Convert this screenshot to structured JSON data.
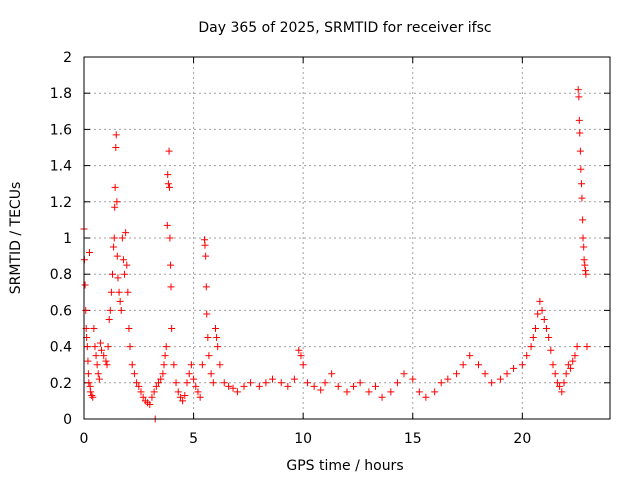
{
  "chart_data": {
    "type": "scatter",
    "title": "Day 365 of 2025, SRMTID for receiver ifsc",
    "xlabel": "GPS time / hours",
    "ylabel": "SRMTID / TECUs",
    "xlim": [
      0,
      24
    ],
    "ylim": [
      0,
      2
    ],
    "xticks": [
      0,
      5,
      10,
      15,
      20
    ],
    "yticks": [
      0,
      0.2,
      0.4,
      0.6,
      0.8,
      1,
      1.2,
      1.4,
      1.6,
      1.8,
      2
    ],
    "xtick_labels": [
      "0",
      "5",
      "10",
      "15",
      "20"
    ],
    "ytick_labels": [
      "0",
      "0.2",
      "0.4",
      "0.6",
      "0.8",
      "1",
      "1.2",
      "1.4",
      "1.6",
      "1.8",
      "2"
    ],
    "grid": true,
    "marker": "+",
    "color": "#ff0000",
    "series": [
      {
        "name": "SRMTID",
        "points": [
          [
            0.0,
            1.05
          ],
          [
            0.02,
            0.88
          ],
          [
            0.05,
            0.74
          ],
          [
            0.08,
            0.6
          ],
          [
            0.1,
            0.5
          ],
          [
            0.12,
            0.45
          ],
          [
            0.15,
            0.4
          ],
          [
            0.18,
            0.32
          ],
          [
            0.2,
            0.25
          ],
          [
            0.22,
            0.2
          ],
          [
            0.25,
            0.92
          ],
          [
            0.28,
            0.18
          ],
          [
            0.3,
            0.15
          ],
          [
            0.35,
            0.13
          ],
          [
            0.4,
            0.12
          ],
          [
            0.45,
            0.5
          ],
          [
            0.5,
            0.4
          ],
          [
            0.55,
            0.35
          ],
          [
            0.6,
            0.3
          ],
          [
            0.65,
            0.25
          ],
          [
            0.7,
            0.22
          ],
          [
            0.75,
            0.42
          ],
          [
            0.8,
            0.38
          ],
          [
            0.9,
            0.35
          ],
          [
            1.0,
            0.32
          ],
          [
            1.05,
            0.3
          ],
          [
            1.1,
            0.4
          ],
          [
            1.15,
            0.55
          ],
          [
            1.2,
            0.6
          ],
          [
            1.25,
            0.7
          ],
          [
            1.3,
            0.8
          ],
          [
            1.35,
            0.95
          ],
          [
            1.38,
            1.0
          ],
          [
            1.4,
            1.17
          ],
          [
            1.42,
            1.28
          ],
          [
            1.45,
            1.5
          ],
          [
            1.47,
            1.57
          ],
          [
            1.5,
            1.2
          ],
          [
            1.52,
            0.9
          ],
          [
            1.55,
            0.78
          ],
          [
            1.6,
            0.7
          ],
          [
            1.65,
            0.65
          ],
          [
            1.7,
            0.6
          ],
          [
            1.75,
            1.0
          ],
          [
            1.8,
            0.88
          ],
          [
            1.85,
            0.8
          ],
          [
            1.9,
            1.03
          ],
          [
            1.95,
            0.85
          ],
          [
            2.0,
            0.7
          ],
          [
            2.05,
            0.5
          ],
          [
            2.1,
            0.4
          ],
          [
            2.2,
            0.3
          ],
          [
            2.3,
            0.25
          ],
          [
            2.4,
            0.2
          ],
          [
            2.5,
            0.18
          ],
          [
            2.6,
            0.15
          ],
          [
            2.7,
            0.12
          ],
          [
            2.8,
            0.1
          ],
          [
            2.9,
            0.09
          ],
          [
            3.0,
            0.08
          ],
          [
            3.1,
            0.12
          ],
          [
            3.2,
            0.15
          ],
          [
            3.25,
            0.0
          ],
          [
            3.3,
            0.18
          ],
          [
            3.4,
            0.2
          ],
          [
            3.5,
            0.22
          ],
          [
            3.6,
            0.25
          ],
          [
            3.65,
            0.3
          ],
          [
            3.7,
            0.35
          ],
          [
            3.75,
            0.4
          ],
          [
            3.8,
            1.07
          ],
          [
            3.82,
            1.35
          ],
          [
            3.85,
            1.3
          ],
          [
            3.88,
            1.48
          ],
          [
            3.9,
            1.28
          ],
          [
            3.92,
            1.0
          ],
          [
            3.95,
            0.85
          ],
          [
            3.97,
            0.73
          ],
          [
            4.0,
            0.5
          ],
          [
            4.1,
            0.3
          ],
          [
            4.2,
            0.2
          ],
          [
            4.3,
            0.15
          ],
          [
            4.4,
            0.12
          ],
          [
            4.5,
            0.1
          ],
          [
            4.6,
            0.13
          ],
          [
            4.7,
            0.2
          ],
          [
            4.8,
            0.25
          ],
          [
            4.9,
            0.3
          ],
          [
            5.0,
            0.22
          ],
          [
            5.1,
            0.18
          ],
          [
            5.2,
            0.15
          ],
          [
            5.3,
            0.12
          ],
          [
            5.4,
            0.3
          ],
          [
            5.5,
            0.99
          ],
          [
            5.52,
            0.96
          ],
          [
            5.55,
            0.9
          ],
          [
            5.58,
            0.73
          ],
          [
            5.6,
            0.58
          ],
          [
            5.65,
            0.45
          ],
          [
            5.7,
            0.35
          ],
          [
            5.8,
            0.25
          ],
          [
            5.9,
            0.2
          ],
          [
            6.0,
            0.5
          ],
          [
            6.05,
            0.45
          ],
          [
            6.1,
            0.4
          ],
          [
            6.2,
            0.3
          ],
          [
            6.4,
            0.2
          ],
          [
            6.6,
            0.18
          ],
          [
            6.8,
            0.17
          ],
          [
            7.0,
            0.15
          ],
          [
            7.3,
            0.18
          ],
          [
            7.6,
            0.2
          ],
          [
            8.0,
            0.18
          ],
          [
            8.3,
            0.2
          ],
          [
            8.6,
            0.22
          ],
          [
            9.0,
            0.2
          ],
          [
            9.3,
            0.18
          ],
          [
            9.6,
            0.22
          ],
          [
            9.8,
            0.38
          ],
          [
            9.9,
            0.35
          ],
          [
            10.0,
            0.3
          ],
          [
            10.2,
            0.2
          ],
          [
            10.5,
            0.18
          ],
          [
            10.8,
            0.16
          ],
          [
            11.0,
            0.2
          ],
          [
            11.3,
            0.25
          ],
          [
            11.6,
            0.18
          ],
          [
            12.0,
            0.15
          ],
          [
            12.3,
            0.18
          ],
          [
            12.6,
            0.2
          ],
          [
            13.0,
            0.15
          ],
          [
            13.3,
            0.18
          ],
          [
            13.6,
            0.12
          ],
          [
            14.0,
            0.15
          ],
          [
            14.3,
            0.2
          ],
          [
            14.6,
            0.25
          ],
          [
            15.0,
            0.22
          ],
          [
            15.3,
            0.15
          ],
          [
            15.6,
            0.12
          ],
          [
            16.0,
            0.15
          ],
          [
            16.3,
            0.2
          ],
          [
            16.6,
            0.22
          ],
          [
            17.0,
            0.25
          ],
          [
            17.3,
            0.3
          ],
          [
            17.6,
            0.35
          ],
          [
            18.0,
            0.3
          ],
          [
            18.3,
            0.25
          ],
          [
            18.6,
            0.2
          ],
          [
            19.0,
            0.22
          ],
          [
            19.3,
            0.25
          ],
          [
            19.6,
            0.28
          ],
          [
            20.0,
            0.3
          ],
          [
            20.2,
            0.35
          ],
          [
            20.4,
            0.4
          ],
          [
            20.5,
            0.45
          ],
          [
            20.6,
            0.5
          ],
          [
            20.7,
            0.58
          ],
          [
            20.8,
            0.65
          ],
          [
            20.9,
            0.6
          ],
          [
            21.0,
            0.55
          ],
          [
            21.1,
            0.5
          ],
          [
            21.2,
            0.45
          ],
          [
            21.3,
            0.38
          ],
          [
            21.4,
            0.3
          ],
          [
            21.5,
            0.25
          ],
          [
            21.6,
            0.2
          ],
          [
            21.7,
            0.18
          ],
          [
            21.8,
            0.15
          ],
          [
            21.9,
            0.2
          ],
          [
            22.0,
            0.25
          ],
          [
            22.1,
            0.3
          ],
          [
            22.2,
            0.28
          ],
          [
            22.3,
            0.32
          ],
          [
            22.4,
            0.35
          ],
          [
            22.5,
            0.4
          ],
          [
            22.55,
            1.82
          ],
          [
            22.58,
            1.78
          ],
          [
            22.6,
            1.65
          ],
          [
            22.62,
            1.58
          ],
          [
            22.65,
            1.48
          ],
          [
            22.67,
            1.38
          ],
          [
            22.7,
            1.3
          ],
          [
            22.72,
            1.22
          ],
          [
            22.75,
            1.1
          ],
          [
            22.77,
            1.0
          ],
          [
            22.8,
            0.95
          ],
          [
            22.82,
            0.88
          ],
          [
            22.85,
            0.85
          ],
          [
            22.88,
            0.82
          ],
          [
            22.9,
            0.8
          ],
          [
            22.95,
            0.4
          ]
        ]
      }
    ]
  }
}
